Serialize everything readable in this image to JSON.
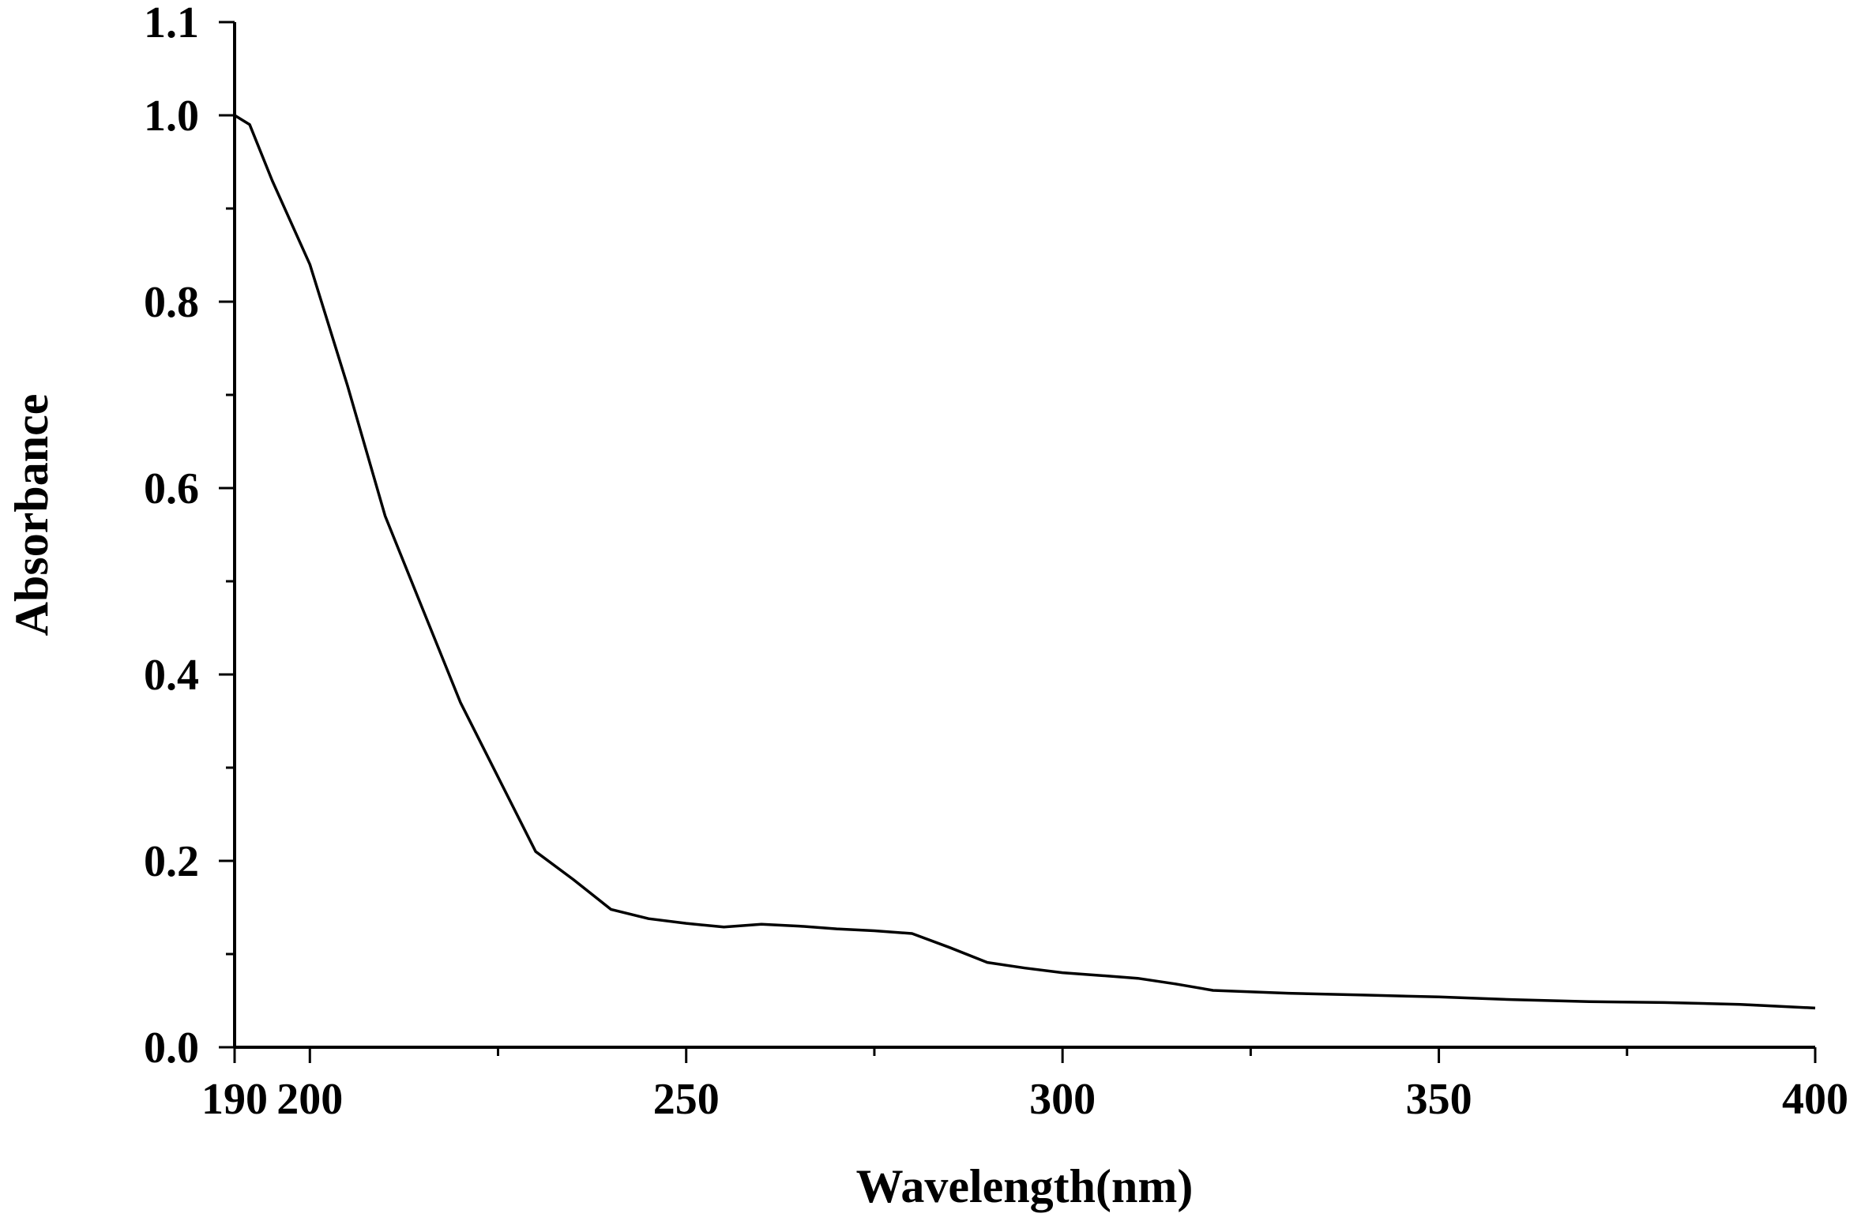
{
  "chart_data": {
    "type": "line",
    "title": "",
    "xlabel": "Wavelength(nm)",
    "ylabel": "Absorbance",
    "xlim": [
      190,
      400
    ],
    "ylim": [
      0.0,
      1.1
    ],
    "x_ticks": [
      190,
      200,
      250,
      300,
      350,
      400
    ],
    "x_tick_labels": [
      "190",
      "200",
      "250",
      "300",
      "350",
      "400"
    ],
    "x_minor_ticks": [
      225,
      275,
      325,
      375
    ],
    "y_ticks": [
      0.0,
      0.2,
      0.4,
      0.6,
      0.8,
      1.0,
      1.1
    ],
    "y_tick_labels": [
      "0.0",
      "0.2",
      "0.4",
      "0.6",
      "0.8",
      "1.0",
      "1.1"
    ],
    "y_minor_ticks": [
      0.1,
      0.3,
      0.5,
      0.7,
      0.9
    ],
    "grid": false,
    "legend": "none",
    "series": [
      {
        "color": "#000000",
        "x": [
          190,
          192,
          195,
          200,
          205,
          210,
          215,
          220,
          225,
          230,
          235,
          240,
          245,
          250,
          255,
          260,
          265,
          270,
          275,
          280,
          285,
          290,
          295,
          300,
          305,
          310,
          315,
          320,
          330,
          340,
          350,
          360,
          370,
          380,
          390,
          400
        ],
        "y": [
          1.0,
          0.99,
          0.93,
          0.84,
          0.71,
          0.57,
          0.47,
          0.37,
          0.29,
          0.21,
          0.18,
          0.148,
          0.138,
          0.133,
          0.129,
          0.132,
          0.13,
          0.127,
          0.125,
          0.122,
          0.107,
          0.091,
          0.085,
          0.08,
          0.077,
          0.074,
          0.068,
          0.061,
          0.058,
          0.056,
          0.054,
          0.051,
          0.049,
          0.048,
          0.046,
          0.042
        ]
      }
    ]
  }
}
